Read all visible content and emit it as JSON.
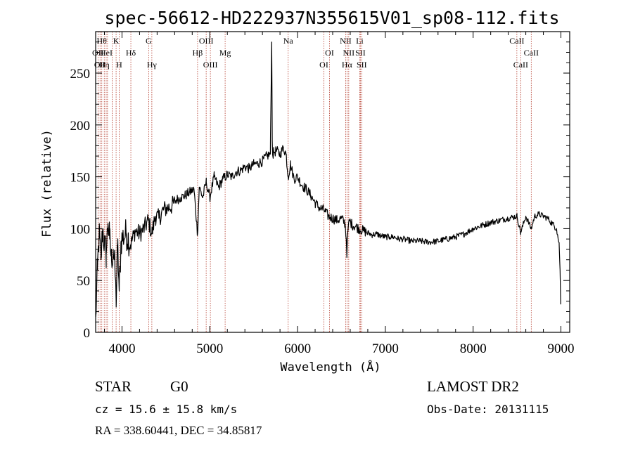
{
  "chart_data": {
    "type": "line",
    "title": "spec-56612-HD222937N355615V01_sp08-112.fits",
    "xlabel": "Wavelength (Å)",
    "ylabel": "Flux (relative)",
    "xlim": [
      3700,
      9100
    ],
    "ylim": [
      0,
      290
    ],
    "xticks": [
      4000,
      5000,
      6000,
      7000,
      8000,
      9000
    ],
    "yticks": [
      0,
      50,
      100,
      150,
      200,
      250
    ],
    "grid": false,
    "series": [
      {
        "color": "#000000",
        "x": [
          3700,
          3720,
          3740,
          3760,
          3780,
          3800,
          3820,
          3840,
          3860,
          3880,
          3900,
          3920,
          3933,
          3950,
          3968,
          3990,
          4010,
          4050,
          4101,
          4150,
          4200,
          4250,
          4300,
          4340,
          4380,
          4420,
          4470,
          4520,
          4570,
          4620,
          4670,
          4720,
          4770,
          4820,
          4861,
          4880,
          4920,
          4960,
          5000,
          5050,
          5100,
          5150,
          5200,
          5250,
          5300,
          5350,
          5400,
          5450,
          5500,
          5550,
          5600,
          5650,
          5690,
          5705,
          5712,
          5718,
          5730,
          5760,
          5800,
          5840,
          5870,
          5893,
          5920,
          5960,
          6000,
          6050,
          6100,
          6150,
          6200,
          6250,
          6300,
          6350,
          6400,
          6450,
          6500,
          6540,
          6555,
          6563,
          6570,
          6590,
          6620,
          6660,
          6700,
          6750,
          6800,
          6850,
          6900,
          6950,
          7000,
          7050,
          7100,
          7150,
          7200,
          7250,
          7300,
          7400,
          7500,
          7600,
          7700,
          7800,
          7900,
          8000,
          8100,
          8200,
          8300,
          8400,
          8500,
          8542,
          8600,
          8662,
          8700,
          8750,
          8800,
          8850,
          8900,
          8950,
          8980,
          8990,
          9000
        ],
        "y": [
          10,
          60,
          95,
          70,
          100,
          85,
          75,
          105,
          90,
          70,
          80,
          60,
          30,
          85,
          40,
          88,
          92,
          95,
          85,
          98,
          95,
          100,
          108,
          95,
          112,
          110,
          118,
          120,
          122,
          128,
          130,
          132,
          135,
          138,
          95,
          140,
          130,
          145,
          130,
          150,
          140,
          148,
          152,
          150,
          155,
          156,
          160,
          158,
          162,
          163,
          165,
          170,
          172,
          280,
          185,
          170,
          174,
          175,
          172,
          178,
          172,
          150,
          162,
          148,
          150,
          142,
          138,
          132,
          125,
          120,
          118,
          112,
          110,
          108,
          110,
          105,
          90,
          75,
          95,
          108,
          104,
          102,
          100,
          98,
          96,
          94,
          95,
          93,
          92,
          92,
          92,
          90,
          90,
          89,
          88,
          88,
          87,
          88,
          90,
          92,
          95,
          100,
          103,
          106,
          108,
          110,
          112,
          96,
          112,
          100,
          112,
          114,
          112,
          110,
          105,
          100,
          85,
          60,
          18
        ]
      }
    ],
    "spectral_lines": [
      {
        "x": 3727,
        "label": "OII",
        "row": 2
      },
      {
        "x": 3750,
        "label": "OII",
        "row": 3
      },
      {
        "x": 3770,
        "label": "Hθ",
        "row": 1
      },
      {
        "x": 3798,
        "label": "Hη",
        "row": 3
      },
      {
        "x": 3820,
        "label": "HeI",
        "row": 2
      },
      {
        "x": 3835,
        "label": "",
        "row": 0
      },
      {
        "x": 3889,
        "label": "",
        "row": 0
      },
      {
        "x": 3933,
        "label": "K",
        "row": 1
      },
      {
        "x": 3968,
        "label": "H",
        "row": 3
      },
      {
        "x": 4101,
        "label": "Hδ",
        "row": 2
      },
      {
        "x": 4304,
        "label": "G",
        "row": 1
      },
      {
        "x": 4340,
        "label": "Hγ",
        "row": 3
      },
      {
        "x": 4861,
        "label": "Hβ",
        "row": 2
      },
      {
        "x": 4959,
        "label": "OIII",
        "row": 1
      },
      {
        "x": 5007,
        "label": "OIII",
        "row": 3
      },
      {
        "x": 5175,
        "label": "Mg",
        "row": 2
      },
      {
        "x": 5893,
        "label": "Na",
        "row": 1
      },
      {
        "x": 6300,
        "label": "OI",
        "row": 3
      },
      {
        "x": 6364,
        "label": "OI",
        "row": 2
      },
      {
        "x": 6548,
        "label": "NII",
        "row": 1
      },
      {
        "x": 6563,
        "label": "Hα",
        "row": 3
      },
      {
        "x": 6583,
        "label": "NII",
        "row": 2
      },
      {
        "x": 6708,
        "label": "Li",
        "row": 1
      },
      {
        "x": 6716,
        "label": "SII",
        "row": 2
      },
      {
        "x": 6731,
        "label": "SII",
        "row": 3
      },
      {
        "x": 8498,
        "label": "CaII",
        "row": 1
      },
      {
        "x": 8542,
        "label": "CaII",
        "row": 3
      },
      {
        "x": 8662,
        "label": "CaII",
        "row": 2
      }
    ]
  },
  "info": {
    "object_class": "STAR",
    "subclass": "G0",
    "survey": "LAMOST DR2",
    "redshift": "cz = 15.6 ± 15.8 km/s",
    "obs_date": "Obs-Date: 20131115",
    "coords": "RA = 338.60441, DEC =  34.85817"
  }
}
